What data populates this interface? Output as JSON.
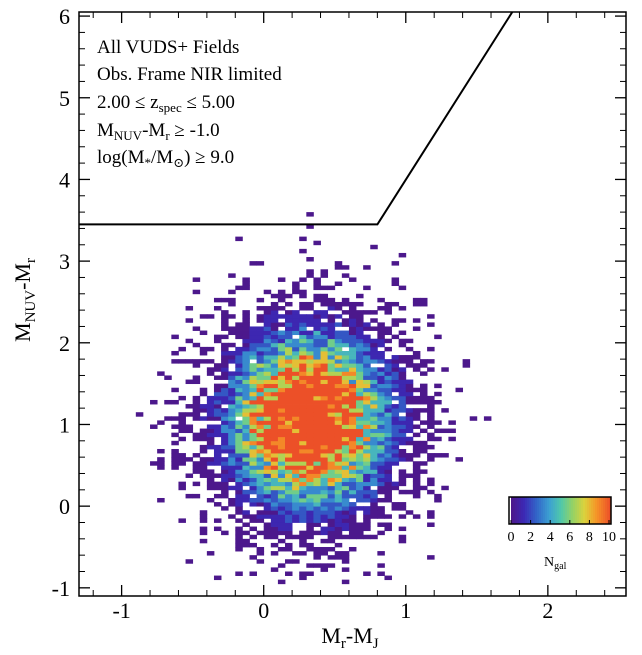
{
  "chart_data": {
    "type": "heatmap",
    "title": "",
    "annotations": {
      "line1": "All VUDS+ Fields",
      "line2": "Obs. Frame NIR limited",
      "line3_pre": "2.00 ≤ z",
      "line3_sub": "spec",
      "line3_post": " ≤ 5.00",
      "line4_pre": "M",
      "line4_sub1": "NUV",
      "line4_mid": "-M",
      "line4_sub2": "r",
      "line4_post": " ≥ -1.0",
      "line5_pre": "log(M",
      "line5_sub1": "*",
      "line5_mid": "/M",
      "line5_sub2": "⊙",
      "line5_post": ") ≥ 9.0"
    },
    "xlabel": {
      "main": "M",
      "sub1": "r",
      "mid": "-M",
      "sub2": "J"
    },
    "ylabel": {
      "main": "M",
      "sub1": "NUV",
      "mid": "-M",
      "sub2": "r"
    },
    "xlim": [
      -1.3,
      2.55
    ],
    "ylim": [
      -1.1,
      6.05
    ],
    "xticks": [
      -1,
      0,
      1,
      2
    ],
    "yticks": [
      -1,
      0,
      1,
      2,
      3,
      4,
      5,
      6
    ],
    "xticklabels": [
      "-1",
      "0",
      "1",
      "2"
    ],
    "yticklabels": [
      "-1",
      "0",
      "1",
      "2",
      "3",
      "4",
      "5",
      "6"
    ],
    "boundary_line": {
      "points": [
        [
          -1.3,
          3.45
        ],
        [
          0.8,
          3.45
        ],
        [
          1.75,
          6.05
        ]
      ]
    },
    "bin_size": 0.05,
    "density_model": {
      "center_x": 0.32,
      "center_y": 1.05,
      "sigma_x": 0.33,
      "sigma_y": 0.62,
      "x_range": [
        -0.95,
        2.45
      ],
      "y_range": [
        -0.95,
        4.8
      ],
      "peak_count": 16,
      "min_count": 1
    },
    "colorbar": {
      "label_main": "N",
      "label_sub": "gal",
      "range": [
        0,
        10
      ],
      "ticks": [
        "0",
        "2",
        "4",
        "6",
        "8",
        "10"
      ]
    }
  }
}
